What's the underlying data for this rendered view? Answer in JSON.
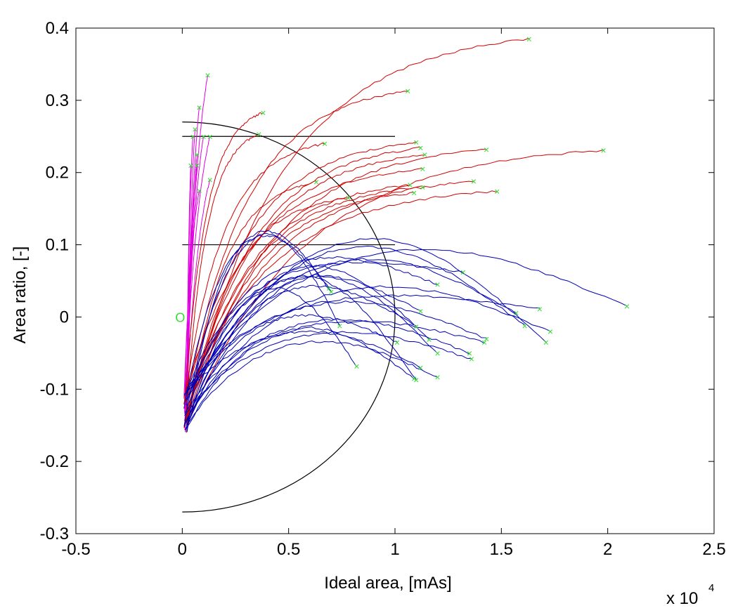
{
  "chart_data": {
    "type": "line",
    "title": "",
    "xlabel": "Ideal area, [mAs]",
    "ylabel": "Area ratio, [-]",
    "x_multiplier": {
      "base": "x 10",
      "exponent": "4"
    },
    "xlim": [
      -0.5,
      2.5
    ],
    "ylim": [
      -0.3,
      0.4
    ],
    "x_ticks": [
      "-0.5",
      "0",
      "0.5",
      "1",
      "1.5",
      "2",
      "2.5"
    ],
    "y_ticks": [
      "0.4",
      "0.3",
      "0.2",
      "0.1",
      "0",
      "-0.1",
      "-0.2",
      "-0.3"
    ],
    "grid": false,
    "legend": null,
    "colors": {
      "magenta": "#e000e0",
      "red": "#d00000",
      "blue": "#0000b4",
      "marker": "#33dd33",
      "reference": "#000000"
    },
    "origin_marker": {
      "x": 0,
      "y": 0,
      "label": "O"
    },
    "reference_lines": [
      {
        "type": "hline",
        "y": 0.25,
        "x": [
          0,
          1
        ]
      },
      {
        "type": "hline",
        "y": 0.1,
        "x": [
          0,
          1
        ]
      },
      {
        "type": "semicircle",
        "center": [
          0,
          0
        ],
        "radius_x": 1.0,
        "radius_y": 0.27
      }
    ],
    "series": [
      {
        "color": "magenta",
        "end_points": [
          [
            0.08,
            0.29
          ],
          [
            0.12,
            0.335
          ],
          [
            0.05,
            0.25
          ],
          [
            0.06,
            0.26
          ],
          [
            0.04,
            0.21
          ],
          [
            0.07,
            0.225
          ],
          [
            0.13,
            0.25
          ],
          [
            0.13,
            0.19
          ],
          [
            0.08,
            0.175
          ],
          [
            0.1,
            0.25
          ],
          [
            0.07,
            0.21
          ]
        ]
      },
      {
        "color": "red",
        "end_points": [
          [
            1.63,
            0.385
          ],
          [
            1.06,
            0.313
          ],
          [
            0.38,
            0.283
          ],
          [
            0.36,
            0.253
          ],
          [
            0.67,
            0.24
          ],
          [
            1.1,
            0.242
          ],
          [
            1.12,
            0.234
          ],
          [
            1.14,
            0.225
          ],
          [
            1.43,
            0.232
          ],
          [
            1.98,
            0.231
          ],
          [
            1.13,
            0.205
          ],
          [
            0.63,
            0.187
          ],
          [
            1.37,
            0.188
          ],
          [
            1.07,
            0.183
          ],
          [
            1.13,
            0.18
          ],
          [
            1.48,
            0.174
          ],
          [
            1.09,
            0.172
          ],
          [
            0.78,
            0.165
          ]
        ]
      },
      {
        "color": "blue",
        "end_points": [
          [
            2.09,
            0.015
          ],
          [
            1.32,
            0.062
          ],
          [
            1.2,
            0.045
          ],
          [
            0.69,
            0.04
          ],
          [
            0.7,
            0.035
          ],
          [
            1.68,
            0.011
          ],
          [
            1.57,
            0.006
          ],
          [
            1.12,
            0.008
          ],
          [
            1.61,
            -0.012
          ],
          [
            1.1,
            -0.013
          ],
          [
            1.73,
            -0.02
          ],
          [
            1.71,
            -0.035
          ],
          [
            1.43,
            -0.03
          ],
          [
            1.42,
            -0.035
          ],
          [
            1.16,
            -0.031
          ],
          [
            1.35,
            -0.05
          ],
          [
            1.36,
            -0.058
          ],
          [
            1.2,
            -0.05
          ],
          [
            1.01,
            -0.035
          ],
          [
            0.74,
            -0.012
          ],
          [
            1.12,
            -0.07
          ],
          [
            0.82,
            -0.068
          ],
          [
            1.09,
            -0.085
          ],
          [
            1.1,
            -0.087
          ],
          [
            1.2,
            -0.083
          ]
        ]
      }
    ]
  }
}
